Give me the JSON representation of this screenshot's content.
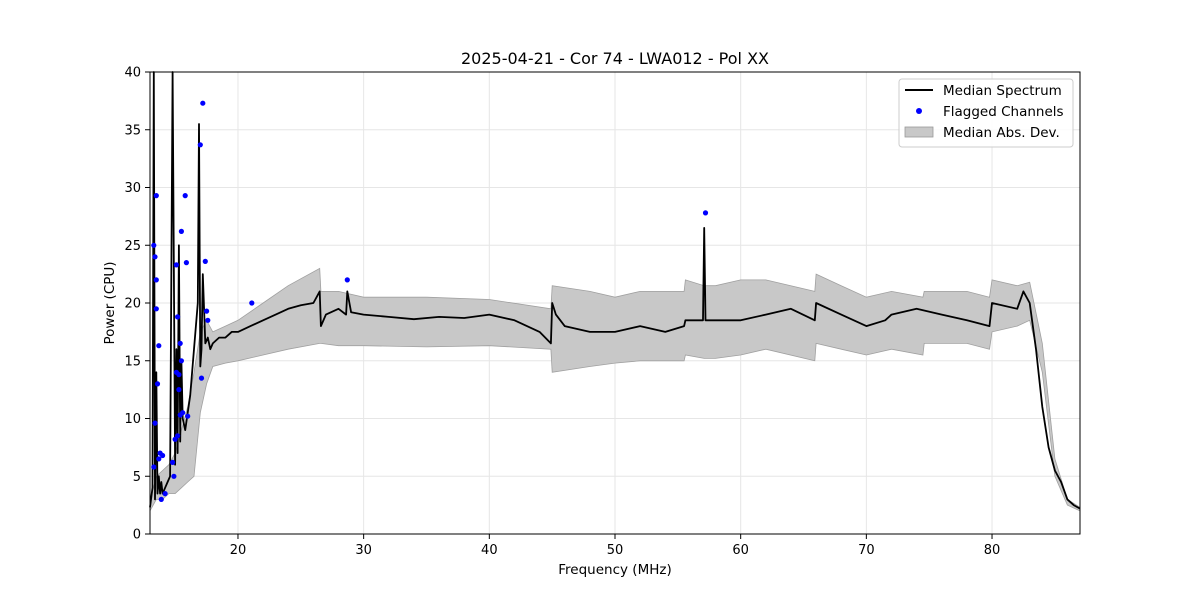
{
  "chart_data": {
    "type": "line",
    "title": "2025-04-21 - Cor 74 - LWA012 - Pol XX",
    "xlabel": "Frequency (MHz)",
    "ylabel": "Power (CPU)",
    "xlim": [
      13,
      87
    ],
    "ylim": [
      0,
      40
    ],
    "x_ticks": [
      20,
      30,
      40,
      50,
      60,
      70,
      80
    ],
    "y_ticks": [
      0,
      5,
      10,
      15,
      20,
      25,
      30,
      35,
      40
    ],
    "x_tick_labels": [
      "20",
      "30",
      "40",
      "50",
      "60",
      "70",
      "80"
    ],
    "y_tick_labels": [
      "0",
      "5",
      "10",
      "15",
      "20",
      "25",
      "30",
      "35",
      "40"
    ],
    "grid": true,
    "legend": {
      "position": "upper-right",
      "entries": [
        {
          "label": "Median Spectrum",
          "kind": "line",
          "color": "#000000"
        },
        {
          "label": "Flagged Channels",
          "kind": "point",
          "color": "#0000ff"
        },
        {
          "label": "Median Abs. Dev.",
          "kind": "band",
          "color": "#c8c8c8"
        }
      ]
    },
    "series": [
      {
        "name": "Median Spectrum",
        "color": "#000000",
        "x": [
          13.0,
          13.2,
          13.3,
          13.4,
          13.5,
          13.6,
          13.7,
          13.8,
          13.9,
          14.0,
          14.2,
          14.4,
          14.6,
          14.8,
          15.0,
          15.1,
          15.2,
          15.3,
          15.4,
          15.5,
          15.6,
          15.8,
          16.0,
          16.2,
          16.5,
          16.8,
          16.9,
          17.0,
          17.1,
          17.2,
          17.4,
          17.6,
          17.8,
          18.0,
          18.5,
          19.0,
          19.5,
          20.0,
          21.0,
          22.0,
          23.0,
          24.0,
          25.0,
          26.0,
          26.5,
          26.6,
          27.0,
          28.0,
          28.6,
          28.7,
          29.0,
          30.0,
          32.0,
          34.0,
          36.0,
          38.0,
          40.0,
          42.0,
          44.0,
          44.9,
          45.0,
          45.3,
          46.0,
          48.0,
          50.0,
          52.0,
          54.0,
          55.5,
          55.6,
          57.0,
          57.1,
          57.2,
          58.0,
          60.0,
          62.0,
          64.0,
          65.9,
          66.0,
          68.0,
          70.0,
          71.5,
          72.0,
          74.0,
          76.0,
          78.0,
          79.8,
          80.0,
          82.0,
          82.5,
          83.0,
          83.5,
          84.0,
          84.5,
          85.0,
          85.5,
          86.0,
          86.5,
          87.0
        ],
        "y": [
          2.3,
          4.0,
          40.0,
          3.0,
          14.0,
          3.5,
          5.0,
          3.5,
          4.5,
          3.5,
          4.0,
          4.5,
          5.0,
          40.0,
          6.0,
          16.0,
          7.0,
          25.0,
          8.0,
          15.0,
          10.0,
          9.0,
          10.5,
          12.0,
          16.0,
          20.0,
          35.5,
          14.5,
          16.0,
          22.5,
          16.5,
          17.0,
          16.0,
          16.5,
          17.0,
          17.0,
          17.5,
          17.5,
          18.0,
          18.5,
          19.0,
          19.5,
          19.8,
          20.0,
          21.0,
          18.0,
          19.0,
          19.5,
          19.0,
          21.0,
          19.2,
          19.0,
          18.8,
          18.6,
          18.8,
          18.7,
          19.0,
          18.5,
          17.5,
          16.5,
          20.0,
          19.0,
          18.0,
          17.5,
          17.5,
          18.0,
          17.5,
          18.0,
          18.5,
          18.5,
          26.5,
          18.5,
          18.5,
          18.5,
          19.0,
          19.5,
          18.5,
          20.0,
          19.0,
          18.0,
          18.5,
          19.0,
          19.5,
          19.0,
          18.5,
          18.0,
          20.0,
          19.5,
          21.0,
          20.0,
          16.0,
          11.0,
          7.5,
          5.5,
          4.5,
          3.0,
          2.5,
          2.2
        ]
      }
    ],
    "band": {
      "name": "Median Abs. Dev.",
      "color": "#c8c8c8",
      "x": [
        13.0,
        13.5,
        14.0,
        14.5,
        15.0,
        15.5,
        16.0,
        16.5,
        17.0,
        17.5,
        18.0,
        19.0,
        20.0,
        22.0,
        24.0,
        26.5,
        26.6,
        28.0,
        30.0,
        35.0,
        40.0,
        44.9,
        45.0,
        48.0,
        50.0,
        52.0,
        55.5,
        55.6,
        57.1,
        58.0,
        60.0,
        62.0,
        65.9,
        66.0,
        68.0,
        70.0,
        72.0,
        74.5,
        74.6,
        78.0,
        79.8,
        80.0,
        82.0,
        83.0,
        84.0,
        85.0,
        86.0,
        87.0
      ],
      "upper": [
        2.8,
        5.0,
        5.5,
        6.0,
        7.0,
        9.0,
        11.0,
        14.0,
        17.5,
        18.5,
        17.5,
        18.0,
        18.5,
        20.0,
        21.5,
        23.0,
        21.0,
        21.0,
        20.5,
        20.5,
        20.3,
        19.5,
        21.5,
        21.0,
        20.5,
        21.0,
        21.0,
        22.0,
        21.5,
        21.5,
        22.0,
        22.0,
        21.0,
        22.5,
        21.5,
        20.5,
        21.0,
        20.5,
        21.0,
        21.0,
        20.5,
        22.0,
        21.5,
        21.8,
        16.5,
        6.5,
        3.0,
        2.3
      ],
      "lower": [
        2.0,
        3.0,
        3.0,
        3.5,
        3.5,
        4.0,
        4.5,
        5.0,
        10.5,
        13.0,
        14.5,
        14.8,
        15.0,
        15.5,
        16.0,
        16.5,
        16.5,
        16.3,
        16.3,
        16.2,
        16.3,
        16.0,
        14.0,
        14.5,
        14.8,
        15.0,
        15.0,
        15.5,
        15.2,
        15.2,
        15.5,
        16.0,
        15.0,
        16.5,
        16.0,
        15.5,
        16.0,
        15.5,
        16.5,
        16.5,
        16.0,
        17.5,
        18.0,
        18.5,
        14.0,
        5.0,
        2.5,
        2.0
      ]
    },
    "flagged_points": {
      "name": "Flagged Channels",
      "color": "#0000ff",
      "x": [
        13.3,
        13.3,
        13.4,
        13.4,
        13.5,
        13.5,
        13.5,
        13.6,
        13.7,
        13.7,
        13.8,
        13.9,
        14.0,
        14.2,
        14.8,
        14.9,
        15.0,
        15.1,
        15.1,
        15.2,
        15.2,
        15.3,
        15.3,
        15.4,
        15.4,
        15.5,
        15.5,
        15.6,
        15.8,
        15.9,
        16.0,
        17.0,
        17.1,
        17.2,
        17.4,
        17.5,
        17.6,
        21.1,
        28.7,
        57.2
      ],
      "y": [
        5.8,
        25.0,
        9.6,
        24.0,
        19.5,
        29.3,
        22.0,
        13.0,
        16.3,
        6.5,
        7.0,
        3.0,
        6.8,
        3.5,
        6.2,
        5.0,
        8.2,
        14.0,
        23.3,
        8.5,
        18.8,
        12.5,
        13.8,
        16.5,
        10.3,
        15.0,
        26.2,
        10.5,
        29.3,
        23.5,
        10.2,
        33.7,
        13.5,
        37.3,
        23.6,
        19.3,
        18.5,
        20.0,
        22.0,
        27.8
      ]
    }
  }
}
